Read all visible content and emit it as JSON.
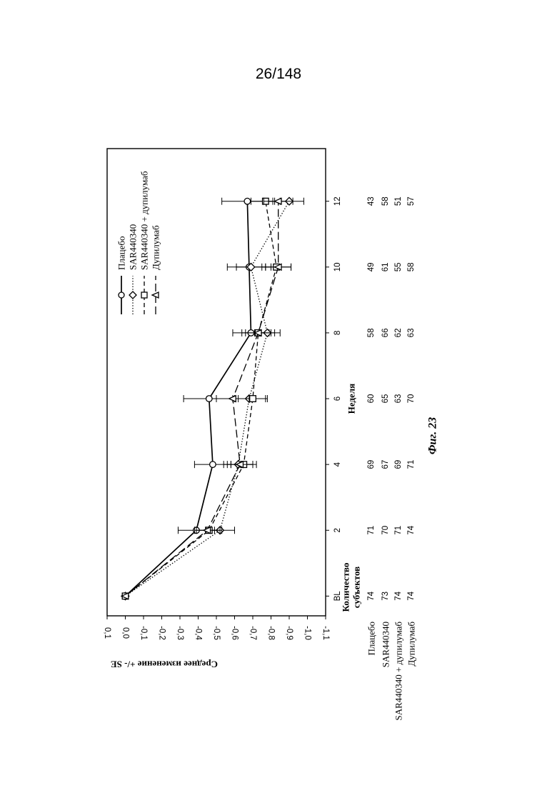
{
  "page": {
    "number": "26/148"
  },
  "chart_data": {
    "type": "line",
    "xlabel": "Неделя",
    "ylabel": "Среднее изменение +/- SE",
    "caption": "Фиг. 23",
    "categories": [
      "BL",
      "2",
      "4",
      "6",
      "8",
      "10",
      "12"
    ],
    "x": [
      0,
      2,
      4,
      6,
      8,
      10,
      12
    ],
    "xlim": [
      -0.6,
      13.6
    ],
    "ylim": [
      -1.1,
      0.1
    ],
    "y_ticks": [
      "0,1",
      "0,0",
      "-0,1",
      "-0,2",
      "-0,3",
      "-0,4",
      "-0,5",
      "-0,6",
      "-0,7",
      "-0,8",
      "-0,9",
      "-1,0",
      "-1,1"
    ],
    "y_tick_values": [
      0.1,
      0.0,
      -0.1,
      -0.2,
      -0.3,
      -0.4,
      -0.5,
      -0.6,
      -0.7,
      -0.8,
      -0.9,
      -1.0,
      -1.1
    ],
    "legend_position": "top-left",
    "series": [
      {
        "name": "Плацебо",
        "marker": "circle",
        "dash": "solid",
        "values": [
          0.0,
          -0.39,
          -0.48,
          -0.46,
          -0.69,
          -0.68,
          -0.67
        ],
        "se": [
          0.0,
          0.1,
          0.1,
          0.14,
          0.1,
          0.12,
          0.14
        ]
      },
      {
        "name": "SAR440340",
        "marker": "diamond",
        "dash": "dotted",
        "values": [
          0.0,
          -0.52,
          -0.62,
          -0.68,
          -0.78,
          -0.69,
          -0.9
        ],
        "se": [
          0.0,
          0.08,
          0.08,
          0.09,
          0.07,
          0.08,
          0.08
        ]
      },
      {
        "name": "SAR440340 + дупилумаб",
        "marker": "square",
        "dash": "dashed",
        "values": [
          0.0,
          -0.46,
          -0.65,
          -0.7,
          -0.73,
          -0.83,
          -0.77
        ],
        "se": [
          0.0,
          0.07,
          0.07,
          0.08,
          0.07,
          0.08,
          0.08
        ]
      },
      {
        "name": "Дупилумаб",
        "marker": "triangle",
        "dash": "longdash",
        "values": [
          0.0,
          -0.45,
          -0.63,
          -0.59,
          -0.73,
          -0.84,
          -0.84
        ],
        "se": [
          0.0,
          0.07,
          0.07,
          0.09,
          0.09,
          0.07,
          0.08
        ]
      }
    ],
    "subjects": {
      "header": [
        "Количество",
        "субъектов"
      ],
      "rows": [
        {
          "label": "Плацебо",
          "counts": [
            "74",
            "71",
            "69",
            "60",
            "58",
            "49",
            "43"
          ]
        },
        {
          "label": "SAR440340",
          "counts": [
            "73",
            "70",
            "67",
            "65",
            "66",
            "61",
            "58"
          ]
        },
        {
          "label": "SAR440340 + дупилумаб",
          "counts": [
            "74",
            "71",
            "69",
            "63",
            "62",
            "55",
            "51"
          ]
        },
        {
          "label": "Дупилумаб",
          "counts": [
            "74",
            "74",
            "71",
            "70",
            "63",
            "58",
            "57"
          ]
        }
      ]
    }
  }
}
